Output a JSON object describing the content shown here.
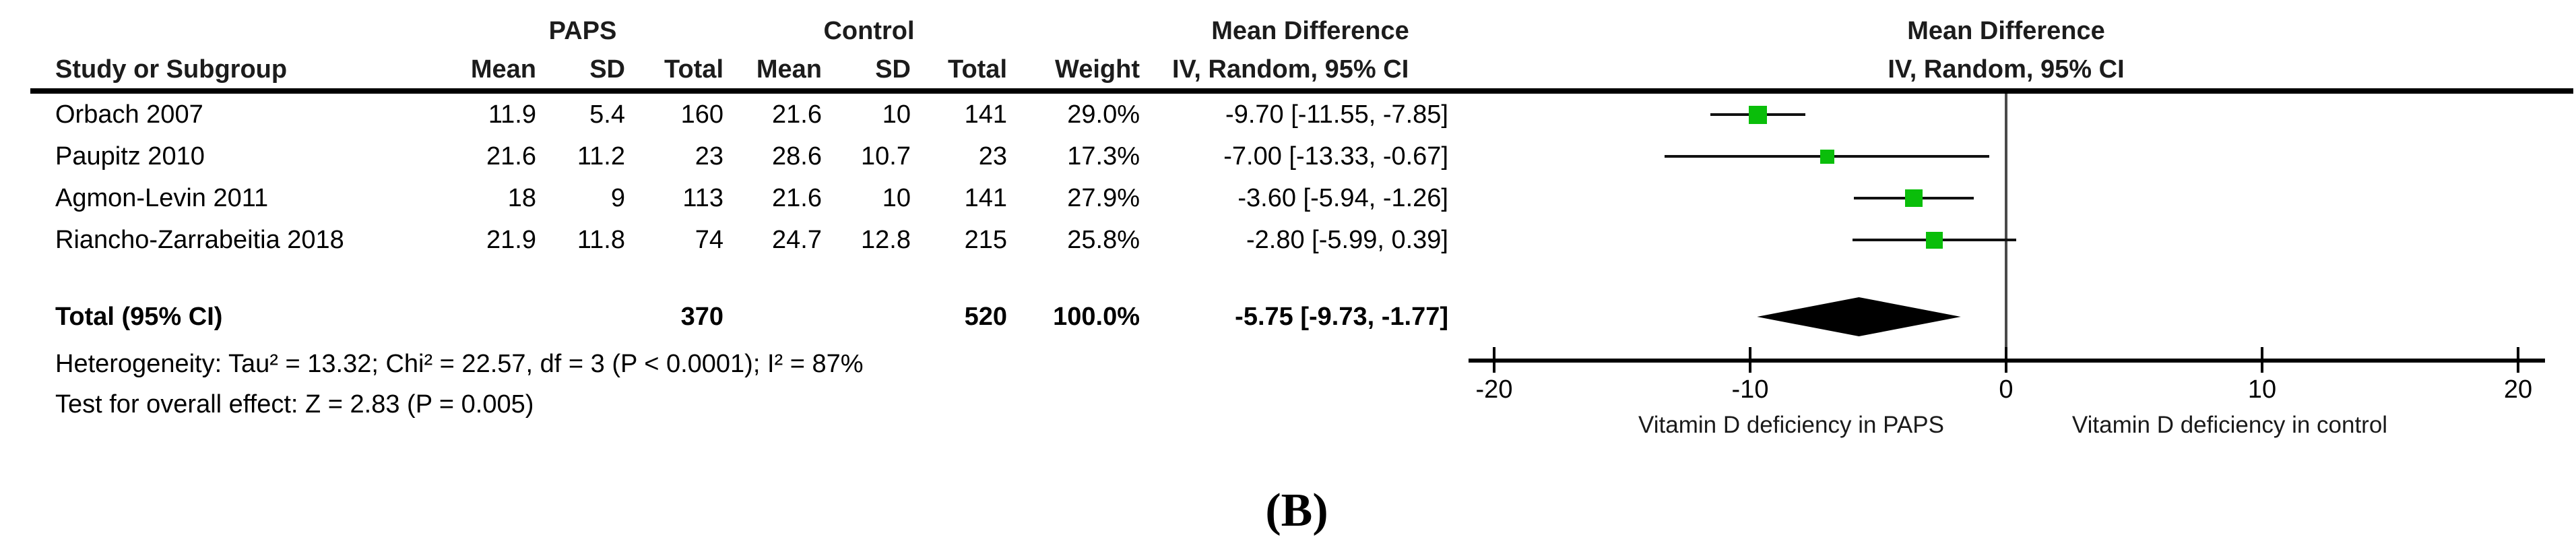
{
  "table": {
    "group_headers": {
      "paps": "PAPS",
      "control": "Control",
      "mean_difference_left": "Mean Difference",
      "mean_difference_right": "Mean Difference"
    },
    "col_headers": {
      "study": "Study or Subgroup",
      "paps_mean": "Mean",
      "paps_sd": "SD",
      "paps_total": "Total",
      "ctrl_mean": "Mean",
      "ctrl_sd": "SD",
      "ctrl_total": "Total",
      "weight": "Weight",
      "ci_left": "IV, Random, 95% CI",
      "ci_right": "IV, Random, 95% CI"
    },
    "studies": [
      {
        "name": "Orbach 2007",
        "paps_mean": "11.9",
        "paps_sd": "5.4",
        "paps_total": "160",
        "ctrl_mean": "21.6",
        "ctrl_sd": "10",
        "ctrl_total": "141",
        "weight": "29.0%",
        "ci": "-9.70 [-11.55, -7.85]"
      },
      {
        "name": "Paupitz 2010",
        "paps_mean": "21.6",
        "paps_sd": "11.2",
        "paps_total": "23",
        "ctrl_mean": "28.6",
        "ctrl_sd": "10.7",
        "ctrl_total": "23",
        "weight": "17.3%",
        "ci": "-7.00 [-13.33, -0.67]"
      },
      {
        "name": "Agmon-Levin 2011",
        "paps_mean": "18",
        "paps_sd": "9",
        "paps_total": "113",
        "ctrl_mean": "21.6",
        "ctrl_sd": "10",
        "ctrl_total": "141",
        "weight": "27.9%",
        "ci": "-3.60 [-5.94, -1.26]"
      },
      {
        "name": "Riancho-Zarrabeitia 2018",
        "paps_mean": "21.9",
        "paps_sd": "11.8",
        "paps_total": "74",
        "ctrl_mean": "24.7",
        "ctrl_sd": "12.8",
        "ctrl_total": "215",
        "weight": "25.8%",
        "ci": "-2.80 [-5.99, 0.39]"
      }
    ],
    "total_row": {
      "label": "Total (95% CI)",
      "paps_total": "370",
      "ctrl_total": "520",
      "weight": "100.0%",
      "ci": "-5.75 [-9.73, -1.77]"
    },
    "footnotes": {
      "heterogeneity": "Heterogeneity: Tau² = 13.32; Chi² = 22.57, df = 3 (P < 0.0001); I² = 87%",
      "overall_effect": "Test for overall effect: Z = 2.83 (P = 0.005)"
    }
  },
  "chart_data": {
    "type": "forest",
    "effect_measure": "Mean Difference, IV, Random, 95% CI",
    "x_axis": {
      "range": [
        -20,
        20
      ],
      "ticks": [
        -20,
        -10,
        0,
        10,
        20
      ],
      "caption_left": "Vitamin D deficiency in PAPS",
      "caption_right": "Vitamin D deficiency in control"
    },
    "studies": [
      {
        "name": "Orbach 2007",
        "estimate": -9.7,
        "ci_lower": -11.55,
        "ci_upper": -7.85,
        "weight_pct": 29.0
      },
      {
        "name": "Paupitz 2010",
        "estimate": -7.0,
        "ci_lower": -13.33,
        "ci_upper": -0.67,
        "weight_pct": 17.3
      },
      {
        "name": "Agmon-Levin 2011",
        "estimate": -3.6,
        "ci_lower": -5.94,
        "ci_upper": -1.26,
        "weight_pct": 27.9
      },
      {
        "name": "Riancho-Zarrabeitia 2018",
        "estimate": -2.8,
        "ci_lower": -5.99,
        "ci_upper": 0.39,
        "weight_pct": 25.8
      }
    ],
    "total": {
      "estimate": -5.75,
      "ci_lower": -9.73,
      "ci_upper": -1.77,
      "weight_pct": 100.0
    },
    "marker_color": "#0abe0a",
    "diamond_color": "#000000"
  },
  "figure_label": "(B)"
}
